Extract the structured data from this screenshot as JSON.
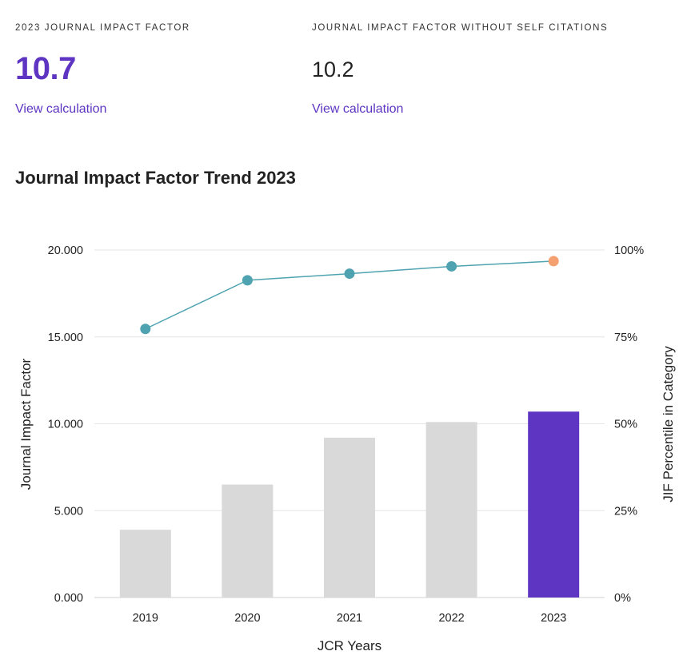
{
  "metrics": [
    {
      "label": "2023 JOURNAL IMPACT FACTOR",
      "value": "10.7",
      "link": "View calculation"
    },
    {
      "label": "JOURNAL IMPACT FACTOR WITHOUT SELF CITATIONS",
      "value": "10.2",
      "link": "View calculation"
    }
  ],
  "chart_data": {
    "type": "bar",
    "title": "Journal Impact Factor Trend 2023",
    "xlabel": "JCR Years",
    "ylabel": "Journal Impact Factor",
    "y2label": "JIF Percentile in Category",
    "categories": [
      "2019",
      "2020",
      "2021",
      "2022",
      "2023"
    ],
    "ylim": [
      0,
      20
    ],
    "y_ticks": [
      0,
      5,
      10,
      15,
      20
    ],
    "y_tick_labels": [
      "0.000",
      "5.000",
      "10.000",
      "15.000",
      "20.000"
    ],
    "y2lim": [
      0,
      100
    ],
    "y2_ticks": [
      0,
      25,
      50,
      75,
      100
    ],
    "y2_tick_labels": [
      "0%",
      "25%",
      "50%",
      "75%",
      "100%"
    ],
    "grid": true,
    "series": [
      {
        "kind": "bar",
        "axis": "left",
        "values": [
          3.9,
          6.5,
          9.2,
          10.1,
          10.7
        ],
        "colors": [
          "#d9d9d9",
          "#d9d9d9",
          "#d9d9d9",
          "#d9d9d9",
          "#5e35c2"
        ]
      },
      {
        "kind": "line",
        "axis": "right",
        "values": [
          77.3,
          91.3,
          93.2,
          95.3,
          96.8
        ],
        "line_color": "#4fa3b0",
        "colors": [
          "#4fa3b0",
          "#4fa3b0",
          "#4fa3b0",
          "#4fa3b0",
          "#f4a070"
        ]
      }
    ]
  }
}
